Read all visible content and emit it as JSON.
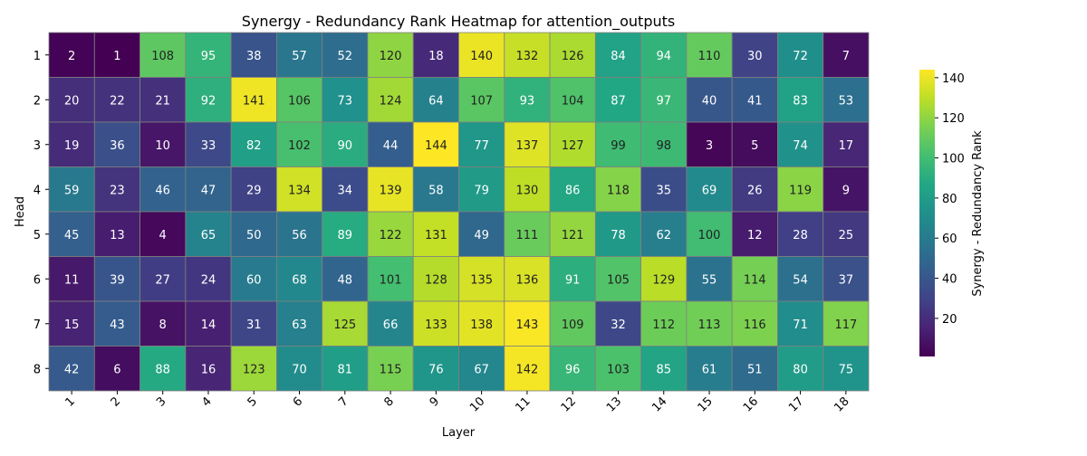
{
  "chart_data": {
    "type": "heatmap",
    "title": "Synergy - Redundancy Rank Heatmap for attention_outputs",
    "xlabel": "Layer",
    "ylabel": "Head",
    "x_categories": [
      "1",
      "2",
      "3",
      "4",
      "5",
      "6",
      "7",
      "8",
      "9",
      "10",
      "11",
      "12",
      "13",
      "14",
      "15",
      "16",
      "17",
      "18"
    ],
    "y_categories": [
      "1",
      "2",
      "3",
      "4",
      "5",
      "6",
      "7",
      "8"
    ],
    "values": [
      [
        2,
        1,
        108,
        95,
        38,
        57,
        52,
        120,
        18,
        140,
        132,
        126,
        84,
        94,
        110,
        30,
        72,
        7
      ],
      [
        20,
        22,
        21,
        92,
        141,
        106,
        73,
        124,
        64,
        107,
        93,
        104,
        87,
        97,
        40,
        41,
        83,
        53
      ],
      [
        19,
        36,
        10,
        33,
        82,
        102,
        90,
        44,
        144,
        77,
        137,
        127,
        99,
        98,
        3,
        5,
        74,
        17
      ],
      [
        59,
        23,
        46,
        47,
        29,
        134,
        34,
        139,
        58,
        79,
        130,
        86,
        118,
        35,
        69,
        26,
        119,
        9
      ],
      [
        45,
        13,
        4,
        65,
        50,
        56,
        89,
        122,
        131,
        49,
        111,
        121,
        78,
        62,
        100,
        12,
        28,
        25
      ],
      [
        11,
        39,
        27,
        24,
        60,
        68,
        48,
        101,
        128,
        135,
        136,
        91,
        105,
        129,
        55,
        114,
        54,
        37
      ],
      [
        15,
        43,
        8,
        14,
        31,
        63,
        125,
        66,
        133,
        138,
        143,
        109,
        32,
        112,
        113,
        116,
        71,
        117
      ],
      [
        42,
        6,
        88,
        16,
        123,
        70,
        81,
        115,
        76,
        67,
        142,
        96,
        103,
        85,
        61,
        51,
        80,
        75
      ]
    ],
    "colormap": "viridis",
    "vmin": 1,
    "vmax": 144,
    "colorbar": {
      "label": "Synergy - Redundancy Rank",
      "ticks": [
        20,
        40,
        60,
        80,
        100,
        120,
        140
      ]
    },
    "annotations": true,
    "cell_border_color": "#808080"
  }
}
